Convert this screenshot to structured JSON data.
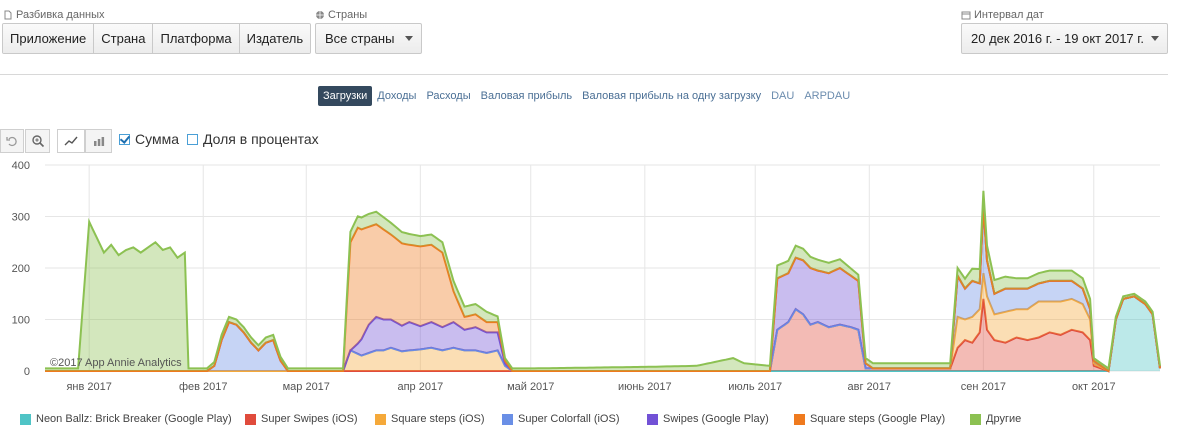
{
  "filters": {
    "breakdown_label": "Разбивка данных",
    "breakdown_options": [
      "Приложение",
      "Страна",
      "Платформа",
      "Издатель"
    ],
    "countries_label": "Страны",
    "countries_value": "Все страны",
    "date_label": "Интервал дат",
    "date_value": "20 дек 2016 г. - 19 окт 2017 г."
  },
  "metric_tabs": [
    "Загрузки",
    "Доходы",
    "Расходы",
    "Валовая прибыль",
    "Валовая прибыль на одну загрузку",
    "DAU",
    "ARPDAU"
  ],
  "active_metric": "Загрузки",
  "options": {
    "sum_label": "Сумма",
    "sum_checked": true,
    "percent_label": "Доля в процентах",
    "percent_checked": false
  },
  "watermark": "©2017 App Annie Analytics",
  "colors": {
    "neon": "#4fc4c6",
    "super_swipes_ios": "#e04b3c",
    "square_steps_ios": "#f5a93a",
    "super_colorfall_ios": "#6a8fe6",
    "swipes_gp": "#7251d6",
    "square_steps_gp": "#ef7a1e",
    "other": "#8cc152"
  },
  "chart_data": {
    "type": "area",
    "stacked": true,
    "ylim": [
      0,
      400
    ],
    "yticks": [
      0,
      100,
      200,
      300,
      400
    ],
    "xlim": [
      "2016-12-20",
      "2017-10-19"
    ],
    "xticks": [
      {
        "date": "2017-01-01",
        "label": "янв 2017"
      },
      {
        "date": "2017-02-01",
        "label": "фев 2017"
      },
      {
        "date": "2017-03-01",
        "label": "мар 2017"
      },
      {
        "date": "2017-04-01",
        "label": "апр 2017"
      },
      {
        "date": "2017-05-01",
        "label": "май 2017"
      },
      {
        "date": "2017-06-01",
        "label": "июнь 2017"
      },
      {
        "date": "2017-07-01",
        "label": "июль 2017"
      },
      {
        "date": "2017-08-01",
        "label": "авг 2017"
      },
      {
        "date": "2017-09-01",
        "label": "сен 2017"
      },
      {
        "date": "2017-10-01",
        "label": "окт 2017"
      }
    ],
    "legend_position": "bottom",
    "series": [
      {
        "name": "Neon Ballz: Brick Breaker (Google Play)",
        "color_key": "neon",
        "points": [
          [
            "2016-12-20",
            0
          ],
          [
            "2017-10-05",
            0
          ],
          [
            "2017-10-07",
            100
          ],
          [
            "2017-10-09",
            140
          ],
          [
            "2017-10-12",
            145
          ],
          [
            "2017-10-15",
            130
          ],
          [
            "2017-10-17",
            110
          ],
          [
            "2017-10-19",
            5
          ]
        ]
      },
      {
        "name": "Super Swipes (iOS)",
        "color_key": "super_swipes_ios",
        "points": [
          [
            "2016-12-20",
            0
          ],
          [
            "2017-07-05",
            0
          ],
          [
            "2017-07-07",
            80
          ],
          [
            "2017-07-10",
            95
          ],
          [
            "2017-07-12",
            120
          ],
          [
            "2017-07-14",
            110
          ],
          [
            "2017-07-16",
            90
          ],
          [
            "2017-07-18",
            95
          ],
          [
            "2017-07-21",
            85
          ],
          [
            "2017-07-24",
            90
          ],
          [
            "2017-07-27",
            85
          ],
          [
            "2017-07-29",
            80
          ],
          [
            "2017-07-31",
            5
          ],
          [
            "2017-08-23",
            5
          ],
          [
            "2017-08-25",
            45
          ],
          [
            "2017-08-27",
            60
          ],
          [
            "2017-08-29",
            55
          ],
          [
            "2017-08-31",
            75
          ],
          [
            "2017-09-01",
            140
          ],
          [
            "2017-09-02",
            80
          ],
          [
            "2017-09-04",
            60
          ],
          [
            "2017-09-07",
            55
          ],
          [
            "2017-09-10",
            65
          ],
          [
            "2017-09-13",
            60
          ],
          [
            "2017-09-16",
            65
          ],
          [
            "2017-09-19",
            75
          ],
          [
            "2017-09-22",
            70
          ],
          [
            "2017-09-25",
            80
          ],
          [
            "2017-09-28",
            75
          ],
          [
            "2017-09-30",
            60
          ],
          [
            "2017-10-01",
            10
          ],
          [
            "2017-10-05",
            0
          ],
          [
            "2017-10-19",
            0
          ]
        ]
      },
      {
        "name": "Square steps (iOS)",
        "color_key": "square_steps_ios",
        "points": [
          [
            "2016-12-20",
            0
          ],
          [
            "2017-03-11",
            0
          ],
          [
            "2017-03-13",
            40
          ],
          [
            "2017-03-16",
            30
          ],
          [
            "2017-03-18",
            35
          ],
          [
            "2017-03-20",
            40
          ],
          [
            "2017-03-22",
            40
          ],
          [
            "2017-03-24",
            45
          ],
          [
            "2017-03-27",
            38
          ],
          [
            "2017-03-29",
            40
          ],
          [
            "2017-04-01",
            42
          ],
          [
            "2017-04-04",
            45
          ],
          [
            "2017-04-07",
            40
          ],
          [
            "2017-04-10",
            45
          ],
          [
            "2017-04-13",
            40
          ],
          [
            "2017-04-16",
            40
          ],
          [
            "2017-04-19",
            35
          ],
          [
            "2017-04-22",
            40
          ],
          [
            "2017-04-24",
            10
          ],
          [
            "2017-04-26",
            0
          ],
          [
            "2017-08-23",
            0
          ],
          [
            "2017-08-25",
            60
          ],
          [
            "2017-08-27",
            40
          ],
          [
            "2017-08-29",
            50
          ],
          [
            "2017-08-31",
            45
          ],
          [
            "2017-09-01",
            50
          ],
          [
            "2017-09-02",
            65
          ],
          [
            "2017-09-04",
            50
          ],
          [
            "2017-09-07",
            60
          ],
          [
            "2017-09-10",
            55
          ],
          [
            "2017-09-13",
            60
          ],
          [
            "2017-09-16",
            70
          ],
          [
            "2017-09-19",
            60
          ],
          [
            "2017-09-22",
            65
          ],
          [
            "2017-09-25",
            60
          ],
          [
            "2017-09-28",
            55
          ],
          [
            "2017-09-30",
            40
          ],
          [
            "2017-10-01",
            5
          ],
          [
            "2017-10-05",
            0
          ],
          [
            "2017-10-19",
            0
          ]
        ]
      },
      {
        "name": "Super Colorfall (iOS)",
        "color_key": "super_colorfall_ios",
        "points": [
          [
            "2016-12-20",
            0
          ],
          [
            "2017-02-02",
            0
          ],
          [
            "2017-02-04",
            10
          ],
          [
            "2017-02-06",
            60
          ],
          [
            "2017-02-08",
            95
          ],
          [
            "2017-02-10",
            90
          ],
          [
            "2017-02-12",
            75
          ],
          [
            "2017-02-14",
            55
          ],
          [
            "2017-02-16",
            40
          ],
          [
            "2017-02-18",
            55
          ],
          [
            "2017-02-20",
            60
          ],
          [
            "2017-02-22",
            20
          ],
          [
            "2017-02-24",
            0
          ],
          [
            "2017-08-23",
            0
          ],
          [
            "2017-08-25",
            80
          ],
          [
            "2017-08-27",
            60
          ],
          [
            "2017-08-29",
            70
          ],
          [
            "2017-08-31",
            50
          ],
          [
            "2017-09-01",
            130
          ],
          [
            "2017-09-02",
            70
          ],
          [
            "2017-09-04",
            40
          ],
          [
            "2017-09-07",
            45
          ],
          [
            "2017-09-10",
            40
          ],
          [
            "2017-09-13",
            40
          ],
          [
            "2017-09-16",
            35
          ],
          [
            "2017-09-19",
            40
          ],
          [
            "2017-09-22",
            40
          ],
          [
            "2017-09-25",
            35
          ],
          [
            "2017-09-28",
            30
          ],
          [
            "2017-09-30",
            20
          ],
          [
            "2017-10-01",
            5
          ],
          [
            "2017-10-05",
            0
          ],
          [
            "2017-10-19",
            0
          ]
        ]
      },
      {
        "name": "Swipes (Google Play)",
        "color_key": "swipes_gp",
        "points": [
          [
            "2016-12-20",
            0
          ],
          [
            "2017-03-13",
            0
          ],
          [
            "2017-03-15",
            20
          ],
          [
            "2017-03-18",
            55
          ],
          [
            "2017-03-20",
            65
          ],
          [
            "2017-03-22",
            60
          ],
          [
            "2017-03-24",
            55
          ],
          [
            "2017-03-27",
            50
          ],
          [
            "2017-03-29",
            55
          ],
          [
            "2017-04-01",
            45
          ],
          [
            "2017-04-04",
            50
          ],
          [
            "2017-04-07",
            45
          ],
          [
            "2017-04-10",
            50
          ],
          [
            "2017-04-13",
            40
          ],
          [
            "2017-04-16",
            45
          ],
          [
            "2017-04-19",
            40
          ],
          [
            "2017-04-22",
            35
          ],
          [
            "2017-04-24",
            5
          ],
          [
            "2017-04-26",
            0
          ],
          [
            "2017-07-05",
            0
          ],
          [
            "2017-07-07",
            100
          ],
          [
            "2017-07-10",
            95
          ],
          [
            "2017-07-12",
            100
          ],
          [
            "2017-07-14",
            105
          ],
          [
            "2017-07-16",
            110
          ],
          [
            "2017-07-18",
            100
          ],
          [
            "2017-07-21",
            105
          ],
          [
            "2017-07-24",
            110
          ],
          [
            "2017-07-27",
            100
          ],
          [
            "2017-07-29",
            95
          ],
          [
            "2017-07-31",
            10
          ],
          [
            "2017-08-02",
            0
          ],
          [
            "2017-10-19",
            0
          ]
        ]
      },
      {
        "name": "Square steps (Google Play)",
        "color_key": "square_steps_gp",
        "points": [
          [
            "2016-12-20",
            0
          ],
          [
            "2017-03-11",
            0
          ],
          [
            "2017-03-13",
            210
          ],
          [
            "2017-03-15",
            225
          ],
          [
            "2017-03-18",
            190
          ],
          [
            "2017-03-20",
            180
          ],
          [
            "2017-03-22",
            175
          ],
          [
            "2017-03-24",
            165
          ],
          [
            "2017-03-27",
            160
          ],
          [
            "2017-03-29",
            150
          ],
          [
            "2017-04-01",
            155
          ],
          [
            "2017-04-04",
            150
          ],
          [
            "2017-04-07",
            145
          ],
          [
            "2017-04-10",
            60
          ],
          [
            "2017-04-13",
            25
          ],
          [
            "2017-04-16",
            25
          ],
          [
            "2017-04-19",
            20
          ],
          [
            "2017-04-22",
            20
          ],
          [
            "2017-04-24",
            5
          ],
          [
            "2017-04-26",
            0
          ],
          [
            "2017-10-19",
            0
          ]
        ]
      },
      {
        "name": "Другие",
        "color_key": "other",
        "points": [
          [
            "2016-12-20",
            5
          ],
          [
            "2016-12-25",
            5
          ],
          [
            "2016-12-29",
            5
          ],
          [
            "2017-01-01",
            290
          ],
          [
            "2017-01-03",
            260
          ],
          [
            "2017-01-05",
            230
          ],
          [
            "2017-01-07",
            245
          ],
          [
            "2017-01-09",
            225
          ],
          [
            "2017-01-11",
            235
          ],
          [
            "2017-01-13",
            240
          ],
          [
            "2017-01-15",
            230
          ],
          [
            "2017-01-17",
            240
          ],
          [
            "2017-01-19",
            250
          ],
          [
            "2017-01-21",
            235
          ],
          [
            "2017-01-23",
            240
          ],
          [
            "2017-01-25",
            220
          ],
          [
            "2017-01-27",
            230
          ],
          [
            "2017-01-28",
            5
          ],
          [
            "2017-02-02",
            5
          ],
          [
            "2017-02-06",
            10
          ],
          [
            "2017-02-10",
            10
          ],
          [
            "2017-02-20",
            10
          ],
          [
            "2017-02-24",
            5
          ],
          [
            "2017-03-11",
            5
          ],
          [
            "2017-03-13",
            20
          ],
          [
            "2017-03-18",
            25
          ],
          [
            "2017-04-01",
            20
          ],
          [
            "2017-04-19",
            20
          ],
          [
            "2017-04-24",
            5
          ],
          [
            "2017-05-01",
            5
          ],
          [
            "2017-06-01",
            8
          ],
          [
            "2017-06-15",
            10
          ],
          [
            "2017-06-25",
            25
          ],
          [
            "2017-06-28",
            15
          ],
          [
            "2017-07-05",
            10
          ],
          [
            "2017-07-07",
            25
          ],
          [
            "2017-07-21",
            20
          ],
          [
            "2017-07-31",
            10
          ],
          [
            "2017-08-23",
            10
          ],
          [
            "2017-08-25",
            15
          ],
          [
            "2017-09-01",
            30
          ],
          [
            "2017-09-10",
            20
          ],
          [
            "2017-09-30",
            20
          ],
          [
            "2017-10-01",
            5
          ],
          [
            "2017-10-05",
            5
          ],
          [
            "2017-10-19",
            5
          ]
        ]
      }
    ]
  }
}
